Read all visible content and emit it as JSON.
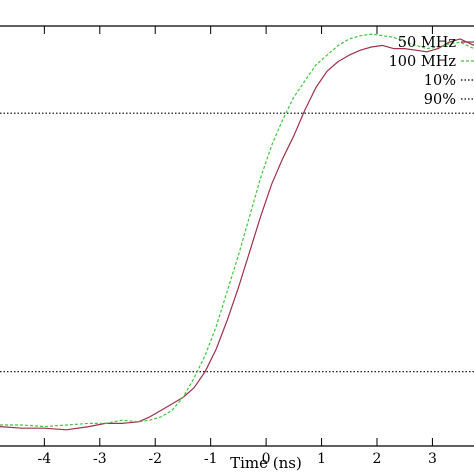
{
  "chart_data": {
    "type": "line",
    "xlabel": "Time (ns)",
    "ylabel": "",
    "title": "",
    "xlim": [
      -4.8,
      3.75
    ],
    "ylim": [
      -0.13,
      1.17
    ],
    "x_ticks": [
      -4,
      -3,
      -2,
      -1,
      0,
      1,
      2,
      3
    ],
    "grid": false,
    "legend_position": "top-right",
    "series": [
      {
        "name": "50 MHz",
        "color": "#a0304a",
        "style": "solid",
        "x": [
          -4.8,
          -4.4,
          -4.0,
          -3.6,
          -3.2,
          -2.9,
          -2.6,
          -2.3,
          -2.1,
          -1.9,
          -1.7,
          -1.5,
          -1.3,
          -1.1,
          -0.9,
          -0.7,
          -0.5,
          -0.3,
          -0.1,
          0.1,
          0.3,
          0.5,
          0.7,
          0.9,
          1.1,
          1.3,
          1.5,
          1.7,
          1.9,
          2.1,
          2.3,
          2.5,
          2.7,
          2.9,
          3.1,
          3.3,
          3.5,
          3.75
        ],
        "y": [
          -0.07,
          -0.075,
          -0.075,
          -0.08,
          -0.07,
          -0.06,
          -0.06,
          -0.055,
          -0.04,
          -0.02,
          0.0,
          0.02,
          0.05,
          0.1,
          0.17,
          0.26,
          0.36,
          0.47,
          0.58,
          0.68,
          0.76,
          0.83,
          0.91,
          0.98,
          1.03,
          1.06,
          1.08,
          1.095,
          1.105,
          1.11,
          1.1,
          1.1,
          1.095,
          1.09,
          1.1,
          1.12,
          1.13,
          1.11
        ]
      },
      {
        "name": "100 MHz",
        "color": "#3cc83c",
        "style": "dashed",
        "x": [
          -4.8,
          -4.4,
          -4.0,
          -3.6,
          -3.2,
          -2.9,
          -2.6,
          -2.3,
          -2.1,
          -1.9,
          -1.7,
          -1.5,
          -1.3,
          -1.1,
          -0.9,
          -0.7,
          -0.5,
          -0.3,
          -0.1,
          0.1,
          0.3,
          0.5,
          0.7,
          0.9,
          1.1,
          1.3,
          1.5,
          1.7,
          1.9,
          2.1,
          2.3,
          2.5,
          2.7,
          2.9,
          3.1,
          3.3,
          3.5,
          3.75
        ],
        "y": [
          -0.065,
          -0.065,
          -0.07,
          -0.065,
          -0.06,
          -0.06,
          -0.05,
          -0.055,
          -0.05,
          -0.04,
          -0.02,
          0.02,
          0.08,
          0.15,
          0.24,
          0.35,
          0.46,
          0.58,
          0.7,
          0.8,
          0.88,
          0.95,
          1.0,
          1.05,
          1.08,
          1.11,
          1.13,
          1.14,
          1.145,
          1.14,
          1.135,
          1.12,
          1.11,
          1.1,
          1.105,
          1.115,
          1.12,
          1.1
        ]
      },
      {
        "name": "10%",
        "color": "#000000",
        "style": "dotted",
        "x": [
          -4.8,
          3.75
        ],
        "y": [
          0.1,
          0.1
        ]
      },
      {
        "name": "90%",
        "color": "#000000",
        "style": "dotted",
        "x": [
          -4.8,
          3.75
        ],
        "y": [
          0.9,
          0.9
        ]
      }
    ]
  }
}
